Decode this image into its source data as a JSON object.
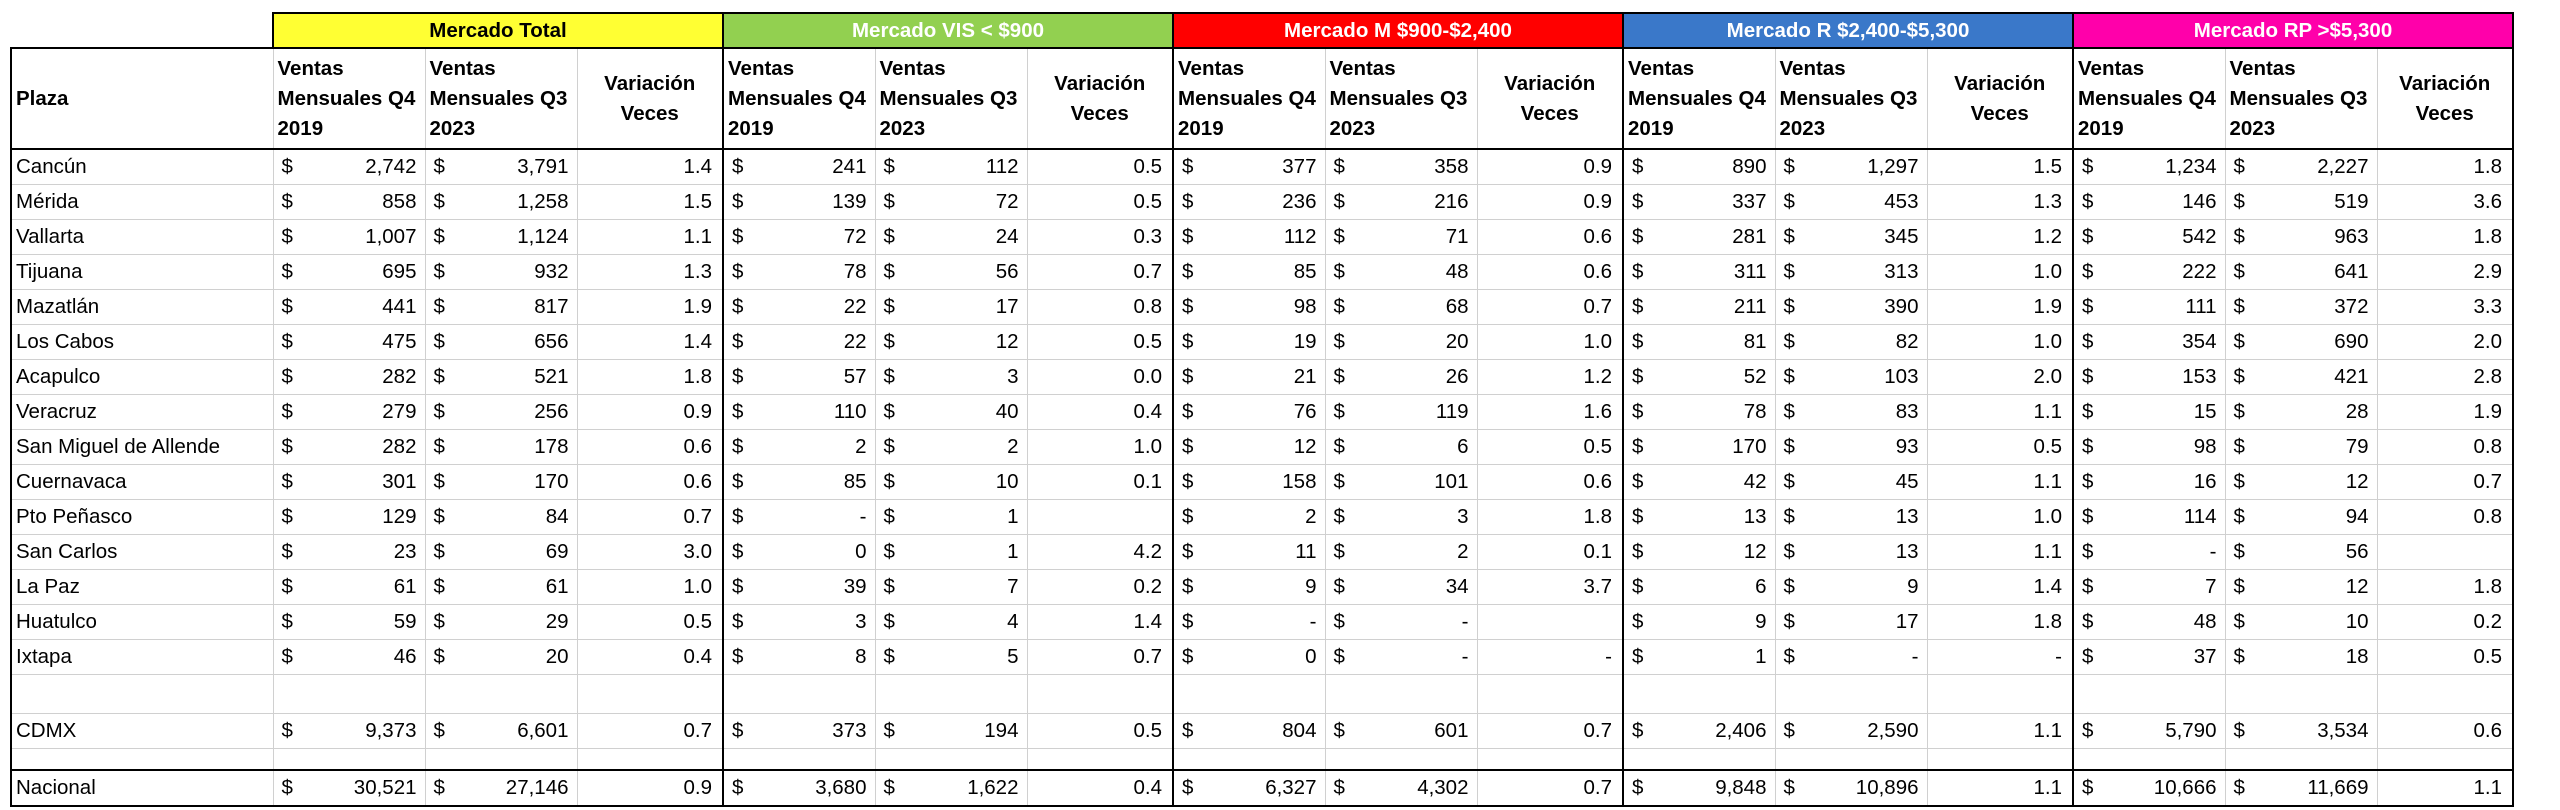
{
  "groups": {
    "total": "Mercado Total",
    "vis": "Mercado VIS < $900",
    "m": "Mercado M $900-$2,400",
    "r": "Mercado R $2,400-$5,300",
    "rp": "Mercado RP >$5,300"
  },
  "headers": {
    "plaza": "Plaza",
    "ventas_q4": "Ventas Mensuales Q4 2019",
    "ventas_q3": "Ventas Mensuales Q3 2023",
    "variacion": "Variación Veces"
  },
  "currency_symbol": "$",
  "rows": [
    {
      "plaza": "Cancún",
      "v": [
        "2,742",
        "3,791",
        "1.4",
        "241",
        "112",
        "0.5",
        "377",
        "358",
        "0.9",
        "890",
        "1,297",
        "1.5",
        "1,234",
        "2,227",
        "1.8"
      ]
    },
    {
      "plaza": "Mérida",
      "v": [
        "858",
        "1,258",
        "1.5",
        "139",
        "72",
        "0.5",
        "236",
        "216",
        "0.9",
        "337",
        "453",
        "1.3",
        "146",
        "519",
        "3.6"
      ]
    },
    {
      "plaza": "Vallarta",
      "v": [
        "1,007",
        "1,124",
        "1.1",
        "72",
        "24",
        "0.3",
        "112",
        "71",
        "0.6",
        "281",
        "345",
        "1.2",
        "542",
        "963",
        "1.8"
      ]
    },
    {
      "plaza": "Tijuana",
      "v": [
        "695",
        "932",
        "1.3",
        "78",
        "56",
        "0.7",
        "85",
        "48",
        "0.6",
        "311",
        "313",
        "1.0",
        "222",
        "641",
        "2.9"
      ]
    },
    {
      "plaza": "Mazatlán",
      "v": [
        "441",
        "817",
        "1.9",
        "22",
        "17",
        "0.8",
        "98",
        "68",
        "0.7",
        "211",
        "390",
        "1.9",
        "111",
        "372",
        "3.3"
      ]
    },
    {
      "plaza": "Los Cabos",
      "v": [
        "475",
        "656",
        "1.4",
        "22",
        "12",
        "0.5",
        "19",
        "20",
        "1.0",
        "81",
        "82",
        "1.0",
        "354",
        "690",
        "2.0"
      ]
    },
    {
      "plaza": "Acapulco",
      "v": [
        "282",
        "521",
        "1.8",
        "57",
        "3",
        "0.0",
        "21",
        "26",
        "1.2",
        "52",
        "103",
        "2.0",
        "153",
        "421",
        "2.8"
      ]
    },
    {
      "plaza": "Veracruz",
      "v": [
        "279",
        "256",
        "0.9",
        "110",
        "40",
        "0.4",
        "76",
        "119",
        "1.6",
        "78",
        "83",
        "1.1",
        "15",
        "28",
        "1.9"
      ]
    },
    {
      "plaza": "San Miguel de Allende",
      "v": [
        "282",
        "178",
        "0.6",
        "2",
        "2",
        "1.0",
        "12",
        "6",
        "0.5",
        "170",
        "93",
        "0.5",
        "98",
        "79",
        "0.8"
      ]
    },
    {
      "plaza": "Cuernavaca",
      "v": [
        "301",
        "170",
        "0.6",
        "85",
        "10",
        "0.1",
        "158",
        "101",
        "0.6",
        "42",
        "45",
        "1.1",
        "16",
        "12",
        "0.7"
      ]
    },
    {
      "plaza": "Pto Peñasco",
      "v": [
        "129",
        "84",
        "0.7",
        "-",
        "1",
        "",
        "2",
        "3",
        "1.8",
        "13",
        "13",
        "1.0",
        "114",
        "94",
        "0.8"
      ]
    },
    {
      "plaza": "San Carlos",
      "v": [
        "23",
        "69",
        "3.0",
        "0",
        "1",
        "4.2",
        "11",
        "2",
        "0.1",
        "12",
        "13",
        "1.1",
        "-",
        "56",
        ""
      ]
    },
    {
      "plaza": "La Paz",
      "v": [
        "61",
        "61",
        "1.0",
        "39",
        "7",
        "0.2",
        "9",
        "34",
        "3.7",
        "6",
        "9",
        "1.4",
        "7",
        "12",
        "1.8"
      ]
    },
    {
      "plaza": "Huatulco",
      "v": [
        "59",
        "29",
        "0.5",
        "3",
        "4",
        "1.4",
        "-",
        "-",
        "",
        "9",
        "17",
        "1.8",
        "48",
        "10",
        "0.2"
      ]
    },
    {
      "plaza": "Ixtapa",
      "v": [
        "46",
        "20",
        "0.4",
        "8",
        "5",
        "0.7",
        "0",
        "-",
        "-",
        "1",
        "-",
        "-",
        "37",
        "18",
        "0.5"
      ]
    }
  ],
  "cdmx": {
    "plaza": "CDMX",
    "v": [
      "9,373",
      "6,601",
      "0.7",
      "373",
      "194",
      "0.5",
      "804",
      "601",
      "0.7",
      "2,406",
      "2,590",
      "1.1",
      "5,790",
      "3,534",
      "0.6"
    ]
  },
  "nacional": {
    "plaza": "Nacional",
    "v": [
      "30,521",
      "27,146",
      "0.9",
      "3,680",
      "1,622",
      "0.4",
      "6,327",
      "4,302",
      "0.7",
      "9,848",
      "10,896",
      "1.1",
      "10,666",
      "11,669",
      "1.1"
    ]
  }
}
